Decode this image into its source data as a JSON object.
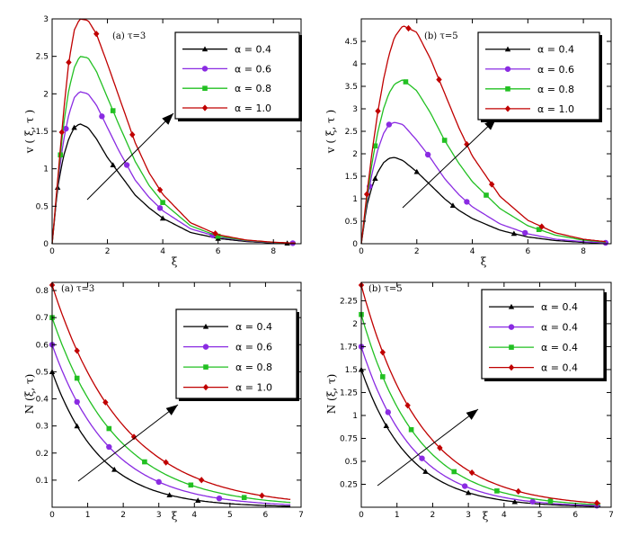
{
  "chart_data": [
    {
      "type": "line",
      "annotation": "(a) τ=3",
      "xlabel": "ξ",
      "ylabel": "v ( ξ, τ )",
      "xlim": [
        0,
        9
      ],
      "ylim": [
        0,
        3
      ],
      "xticks": [
        "0",
        "2",
        "4",
        "6",
        "8"
      ],
      "yticks": [
        "0",
        "0.5",
        "1",
        "1.5",
        "2",
        "2.5",
        "3"
      ],
      "legend_position": "top-right",
      "series": [
        {
          "name": "α = 0.4",
          "color": "#000000",
          "marker": "triangle",
          "x": [
            0,
            0.2,
            0.4,
            0.6,
            0.8,
            1.0,
            1.3,
            1.6,
            2.0,
            2.4,
            3.0,
            3.5,
            4.0,
            5.0,
            6.0,
            7.0,
            8.0,
            8.8
          ],
          "y": [
            0,
            0.75,
            1.15,
            1.4,
            1.55,
            1.6,
            1.55,
            1.4,
            1.15,
            0.95,
            0.65,
            0.48,
            0.34,
            0.15,
            0.07,
            0.03,
            0.01,
            0.005
          ],
          "markers_x": [
            0.2,
            0.8,
            2.2,
            4.0,
            6.0,
            8.5
          ]
        },
        {
          "name": "α = 0.6",
          "color": "#8a2be2",
          "marker": "circle",
          "x": [
            0,
            0.2,
            0.4,
            0.6,
            0.8,
            1.0,
            1.3,
            1.6,
            2.0,
            2.4,
            3.0,
            3.5,
            4.0,
            5.0,
            6.0,
            7.0,
            8.0,
            8.8
          ],
          "y": [
            0,
            0.8,
            1.35,
            1.72,
            1.95,
            2.03,
            2.0,
            1.85,
            1.55,
            1.25,
            0.85,
            0.62,
            0.44,
            0.2,
            0.09,
            0.04,
            0.015,
            0.006
          ],
          "markers_x": [
            0.5,
            1.8,
            2.7,
            3.9,
            5.8,
            8.7
          ]
        },
        {
          "name": "α = 0.8",
          "color": "#22c022",
          "marker": "square",
          "x": [
            0,
            0.2,
            0.4,
            0.6,
            0.8,
            1.0,
            1.3,
            1.6,
            2.0,
            2.4,
            3.0,
            3.5,
            4.0,
            5.0,
            6.0,
            7.0,
            8.0,
            8.8
          ],
          "y": [
            0,
            0.82,
            1.55,
            2.05,
            2.35,
            2.5,
            2.48,
            2.3,
            1.95,
            1.6,
            1.1,
            0.78,
            0.55,
            0.24,
            0.1,
            0.045,
            0.018,
            0.007
          ],
          "markers_x": [
            0.3,
            2.2,
            4.0,
            6.0
          ]
        },
        {
          "name": "α = 1.0",
          "color": "#c00000",
          "marker": "diamond",
          "x": [
            0,
            0.2,
            0.4,
            0.6,
            0.8,
            1.0,
            1.3,
            1.6,
            2.0,
            2.4,
            3.0,
            3.5,
            4.0,
            5.0,
            6.0,
            7.0,
            8.0,
            8.8
          ],
          "y": [
            0,
            0.85,
            1.7,
            2.42,
            2.85,
            3.0,
            2.98,
            2.8,
            2.4,
            1.98,
            1.35,
            0.95,
            0.66,
            0.28,
            0.12,
            0.05,
            0.02,
            0.008
          ],
          "markers_x": [
            0.35,
            0.6,
            1.6,
            2.9,
            3.9,
            5.9
          ]
        }
      ]
    },
    {
      "type": "line",
      "annotation": "(b) τ=5",
      "xlabel": "ξ",
      "ylabel": "v ( ξ, τ )",
      "xlim": [
        0,
        9
      ],
      "ylim": [
        0,
        5
      ],
      "xticks": [
        "0",
        "2",
        "4",
        "6",
        "8"
      ],
      "yticks": [
        "0",
        "0.5",
        "1",
        "1.5",
        "2",
        "2.5",
        "3",
        "3.5",
        "4",
        "4.5"
      ],
      "legend_position": "top-right",
      "series": [
        {
          "name": "α = 0.4",
          "color": "#000000",
          "marker": "triangle",
          "x": [
            0,
            0.2,
            0.4,
            0.6,
            0.8,
            1.0,
            1.2,
            1.5,
            2.0,
            2.5,
            3.0,
            3.5,
            4.0,
            5.0,
            6.0,
            7.0,
            8.0,
            8.8
          ],
          "y": [
            0,
            0.85,
            1.3,
            1.6,
            1.8,
            1.9,
            1.92,
            1.85,
            1.6,
            1.3,
            1.0,
            0.75,
            0.56,
            0.3,
            0.15,
            0.07,
            0.03,
            0.015
          ],
          "markers_x": [
            0.5,
            2.0,
            3.3,
            5.5
          ]
        },
        {
          "name": "α = 0.6",
          "color": "#8a2be2",
          "marker": "circle",
          "x": [
            0,
            0.2,
            0.4,
            0.6,
            0.8,
            1.0,
            1.2,
            1.5,
            2.0,
            2.5,
            3.0,
            3.5,
            4.0,
            5.0,
            6.0,
            7.0,
            8.0,
            8.8
          ],
          "y": [
            0,
            0.95,
            1.6,
            2.1,
            2.45,
            2.65,
            2.7,
            2.65,
            2.3,
            1.9,
            1.45,
            1.1,
            0.82,
            0.44,
            0.22,
            0.1,
            0.045,
            0.02
          ],
          "markers_x": [
            0.3,
            1.0,
            2.4,
            3.8,
            5.9,
            8.8
          ]
        },
        {
          "name": "α = 0.8",
          "color": "#22c022",
          "marker": "square",
          "x": [
            0,
            0.2,
            0.4,
            0.6,
            0.8,
            1.0,
            1.2,
            1.5,
            2.0,
            2.5,
            3.0,
            3.5,
            4.0,
            5.0,
            6.0,
            7.0,
            8.0,
            8.8
          ],
          "y": [
            0,
            1.0,
            1.85,
            2.5,
            3.0,
            3.35,
            3.55,
            3.65,
            3.4,
            2.9,
            2.3,
            1.8,
            1.38,
            0.78,
            0.4,
            0.19,
            0.08,
            0.035
          ],
          "markers_x": [
            0.5,
            1.6,
            3.0,
            4.5,
            6.4
          ]
        },
        {
          "name": "α = 1.0",
          "color": "#c00000",
          "marker": "diamond",
          "x": [
            0,
            0.2,
            0.4,
            0.6,
            0.8,
            1.0,
            1.2,
            1.5,
            2.0,
            2.5,
            3.0,
            3.5,
            4.0,
            5.0,
            6.0,
            7.0,
            8.0,
            8.8
          ],
          "y": [
            0,
            1.1,
            2.1,
            2.95,
            3.65,
            4.2,
            4.6,
            4.85,
            4.7,
            4.1,
            3.35,
            2.6,
            1.95,
            1.05,
            0.52,
            0.24,
            0.1,
            0.045
          ],
          "markers_x": [
            0.2,
            0.6,
            1.7,
            2.8,
            3.8,
            4.7,
            6.5
          ]
        }
      ]
    },
    {
      "type": "line",
      "annotation": "(a) τ=3",
      "xlabel": "ξ",
      "ylabel": "N (ξ, τ)",
      "xlim": [
        0,
        7
      ],
      "ylim": [
        0,
        0.83
      ],
      "xticks": [
        "0",
        "1",
        "2",
        "3",
        "4",
        "5",
        "6",
        "7"
      ],
      "yticks": [
        "0.1",
        "0.2",
        "0.3",
        "0.4",
        "0.5",
        "0.6",
        "0.7",
        "0.8"
      ],
      "legend_position": "top-right",
      "series": [
        {
          "name": "α = 0.4",
          "color": "#000000",
          "marker": "triangle",
          "a": 0.5,
          "k": 0.73,
          "markers_x": [
            0,
            0.7,
            1.75,
            3.3,
            4.1
          ]
        },
        {
          "name": "α = 0.6",
          "color": "#8a2be2",
          "marker": "circle",
          "a": 0.6,
          "k": 0.62,
          "markers_x": [
            0,
            0.7,
            1.6,
            3.0,
            4.7
          ]
        },
        {
          "name": "α = 0.8",
          "color": "#22c022",
          "marker": "square",
          "a": 0.7,
          "k": 0.55,
          "markers_x": [
            0,
            0.7,
            1.6,
            2.6,
            3.9,
            5.4
          ]
        },
        {
          "name": "α = 1.0",
          "color": "#c00000",
          "marker": "diamond",
          "a": 0.82,
          "k": 0.5,
          "markers_x": [
            0,
            0.7,
            1.5,
            2.3,
            3.2,
            4.2,
            5.9
          ]
        }
      ]
    },
    {
      "type": "line",
      "annotation": "(b) τ=5",
      "xlabel": "ξ",
      "ylabel": "N (ξ, τ)",
      "xlim": [
        0,
        7
      ],
      "ylim": [
        0,
        2.45
      ],
      "xticks": [
        "0",
        "1",
        "2",
        "3",
        "4",
        "5",
        "6",
        "7"
      ],
      "yticks": [
        "0.25",
        "0.5",
        "0.75",
        "1",
        "1.25",
        "1.5",
        "1.75",
        "2",
        "2.25"
      ],
      "legend_position": "top-right",
      "series": [
        {
          "name": "α = 0.4",
          "color": "#000000",
          "marker": "triangle",
          "a": 1.5,
          "k": 0.75,
          "markers_x": [
            0,
            0.7,
            1.8,
            3.0,
            4.3
          ]
        },
        {
          "name": "α = 0.4",
          "color": "#8a2be2",
          "marker": "circle",
          "a": 1.75,
          "k": 0.7,
          "markers_x": [
            0,
            0.75,
            1.7,
            2.9,
            4.8,
            6.6
          ]
        },
        {
          "name": "α = 0.4",
          "color": "#22c022",
          "marker": "square",
          "a": 2.1,
          "k": 0.65,
          "markers_x": [
            0,
            0.6,
            1.4,
            2.6,
            3.8,
            5.3
          ]
        },
        {
          "name": "α = 0.4",
          "color": "#c00000",
          "marker": "diamond",
          "a": 2.42,
          "k": 0.6,
          "markers_x": [
            0,
            0.6,
            1.3,
            2.2,
            3.1,
            4.4,
            6.6
          ]
        }
      ]
    }
  ]
}
